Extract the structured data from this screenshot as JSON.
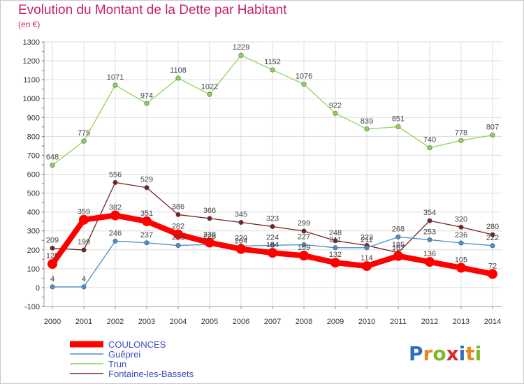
{
  "header": {
    "title": "Evolution du Montant de la Dette par Habitant",
    "unit": "(en €)"
  },
  "logo": {
    "text": "Proxiti",
    "letters": [
      "P",
      "r",
      "o",
      "x",
      "i",
      "t",
      "i"
    ],
    "colors": [
      "#2a6fc0",
      "#e38a1c",
      "#7cb82a",
      "#d72c2c",
      "#2a6fc0",
      "#e38a1c",
      "#7cb82a"
    ]
  },
  "chart_data": {
    "type": "line",
    "title": "Evolution du Montant de la Dette par Habitant",
    "subtitle": "(en €)",
    "x": [
      "2000",
      "2001",
      "2002",
      "2003",
      "2004",
      "2005",
      "2006",
      "2007",
      "2008",
      "2009",
      "2010",
      "2011",
      "2012",
      "2013",
      "2014"
    ],
    "ylim": [
      -100,
      1300
    ],
    "yticks": [
      -100,
      0,
      100,
      200,
      300,
      400,
      500,
      600,
      700,
      800,
      900,
      1000,
      1100,
      1200,
      1300
    ],
    "grid": true,
    "legend_position": "bottom-left",
    "series": [
      {
        "name": "COULONCES",
        "color": "#ff0000",
        "width": "heavy",
        "values": [
          125,
          359,
          382,
          351,
          282,
          238,
          204,
          184,
          169,
          132,
          114,
          167,
          136,
          105,
          72
        ],
        "labels": [
          "125",
          "359",
          "382",
          "351",
          "282",
          "238",
          "204",
          "184",
          "169",
          "132",
          "114",
          "167",
          "136",
          "105",
          "72"
        ]
      },
      {
        "name": "Guêprei",
        "color": "#4a90c8",
        "width": "thin",
        "values": [
          4,
          4,
          246,
          237,
          223,
          228,
          220,
          224,
          227,
          211,
          211,
          268,
          253,
          236,
          222
        ],
        "labels": [
          "4",
          "4",
          "246",
          "237",
          "223",
          "228",
          "220",
          "224",
          "227",
          "211",
          "211",
          "268",
          "253",
          "236",
          "222"
        ]
      },
      {
        "name": "Trun",
        "color": "#8ed654",
        "width": "thin",
        "values": [
          648,
          775,
          1071,
          974,
          1108,
          1022,
          1229,
          1152,
          1076,
          922,
          839,
          851,
          740,
          778,
          807
        ],
        "labels": [
          "648",
          "775",
          "1071",
          "974",
          "1108",
          "1022",
          "1229",
          "1152",
          "1076",
          "922",
          "839",
          "851",
          "740",
          "778",
          "807"
        ]
      },
      {
        "name": "Fontaine-les-Bassets",
        "color": "#7a2020",
        "width": "thin",
        "values": [
          209,
          199,
          556,
          529,
          386,
          366,
          345,
          323,
          299,
          248,
          223,
          185,
          354,
          320,
          280
        ],
        "labels": [
          "209",
          "199",
          "556",
          "529",
          "386",
          "366",
          "345",
          "323",
          "299",
          "248",
          "223",
          "185",
          "354",
          "320",
          "280"
        ]
      }
    ]
  }
}
